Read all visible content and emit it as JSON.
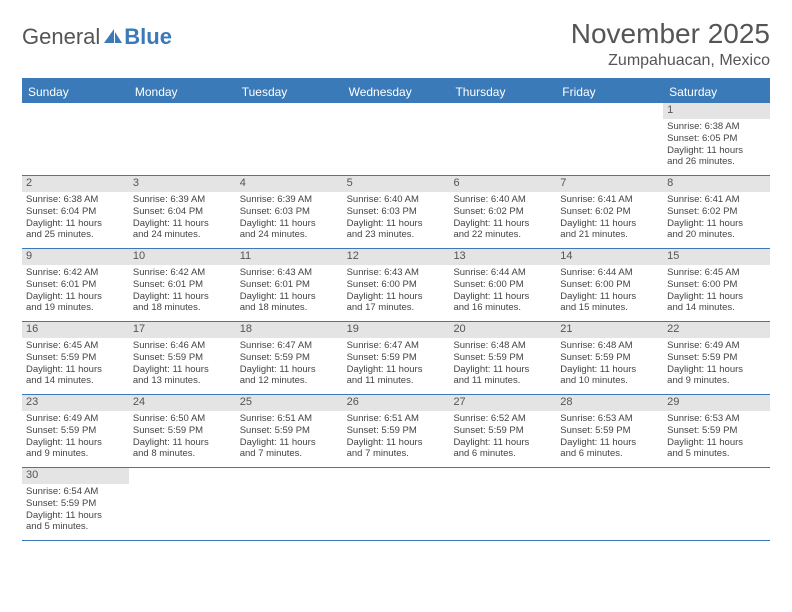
{
  "logo": {
    "text1": "General",
    "text2": "Blue"
  },
  "title": "November 2025",
  "location": "Zumpahuacan, Mexico",
  "header_color": "#3a7ab8",
  "daynum_bg": "#e4e4e4",
  "dayNames": [
    "Sunday",
    "Monday",
    "Tuesday",
    "Wednesday",
    "Thursday",
    "Friday",
    "Saturday"
  ],
  "weeks": [
    [
      {
        "empty": true
      },
      {
        "empty": true
      },
      {
        "empty": true
      },
      {
        "empty": true
      },
      {
        "empty": true
      },
      {
        "empty": true
      },
      {
        "n": "1",
        "sunrise": "Sunrise: 6:38 AM",
        "sunset": "Sunset: 6:05 PM",
        "day1": "Daylight: 11 hours",
        "day2": "and 26 minutes."
      }
    ],
    [
      {
        "n": "2",
        "sunrise": "Sunrise: 6:38 AM",
        "sunset": "Sunset: 6:04 PM",
        "day1": "Daylight: 11 hours",
        "day2": "and 25 minutes."
      },
      {
        "n": "3",
        "sunrise": "Sunrise: 6:39 AM",
        "sunset": "Sunset: 6:04 PM",
        "day1": "Daylight: 11 hours",
        "day2": "and 24 minutes."
      },
      {
        "n": "4",
        "sunrise": "Sunrise: 6:39 AM",
        "sunset": "Sunset: 6:03 PM",
        "day1": "Daylight: 11 hours",
        "day2": "and 24 minutes."
      },
      {
        "n": "5",
        "sunrise": "Sunrise: 6:40 AM",
        "sunset": "Sunset: 6:03 PM",
        "day1": "Daylight: 11 hours",
        "day2": "and 23 minutes."
      },
      {
        "n": "6",
        "sunrise": "Sunrise: 6:40 AM",
        "sunset": "Sunset: 6:02 PM",
        "day1": "Daylight: 11 hours",
        "day2": "and 22 minutes."
      },
      {
        "n": "7",
        "sunrise": "Sunrise: 6:41 AM",
        "sunset": "Sunset: 6:02 PM",
        "day1": "Daylight: 11 hours",
        "day2": "and 21 minutes."
      },
      {
        "n": "8",
        "sunrise": "Sunrise: 6:41 AM",
        "sunset": "Sunset: 6:02 PM",
        "day1": "Daylight: 11 hours",
        "day2": "and 20 minutes."
      }
    ],
    [
      {
        "n": "9",
        "sunrise": "Sunrise: 6:42 AM",
        "sunset": "Sunset: 6:01 PM",
        "day1": "Daylight: 11 hours",
        "day2": "and 19 minutes."
      },
      {
        "n": "10",
        "sunrise": "Sunrise: 6:42 AM",
        "sunset": "Sunset: 6:01 PM",
        "day1": "Daylight: 11 hours",
        "day2": "and 18 minutes."
      },
      {
        "n": "11",
        "sunrise": "Sunrise: 6:43 AM",
        "sunset": "Sunset: 6:01 PM",
        "day1": "Daylight: 11 hours",
        "day2": "and 18 minutes."
      },
      {
        "n": "12",
        "sunrise": "Sunrise: 6:43 AM",
        "sunset": "Sunset: 6:00 PM",
        "day1": "Daylight: 11 hours",
        "day2": "and 17 minutes."
      },
      {
        "n": "13",
        "sunrise": "Sunrise: 6:44 AM",
        "sunset": "Sunset: 6:00 PM",
        "day1": "Daylight: 11 hours",
        "day2": "and 16 minutes."
      },
      {
        "n": "14",
        "sunrise": "Sunrise: 6:44 AM",
        "sunset": "Sunset: 6:00 PM",
        "day1": "Daylight: 11 hours",
        "day2": "and 15 minutes."
      },
      {
        "n": "15",
        "sunrise": "Sunrise: 6:45 AM",
        "sunset": "Sunset: 6:00 PM",
        "day1": "Daylight: 11 hours",
        "day2": "and 14 minutes."
      }
    ],
    [
      {
        "n": "16",
        "sunrise": "Sunrise: 6:45 AM",
        "sunset": "Sunset: 5:59 PM",
        "day1": "Daylight: 11 hours",
        "day2": "and 14 minutes."
      },
      {
        "n": "17",
        "sunrise": "Sunrise: 6:46 AM",
        "sunset": "Sunset: 5:59 PM",
        "day1": "Daylight: 11 hours",
        "day2": "and 13 minutes."
      },
      {
        "n": "18",
        "sunrise": "Sunrise: 6:47 AM",
        "sunset": "Sunset: 5:59 PM",
        "day1": "Daylight: 11 hours",
        "day2": "and 12 minutes."
      },
      {
        "n": "19",
        "sunrise": "Sunrise: 6:47 AM",
        "sunset": "Sunset: 5:59 PM",
        "day1": "Daylight: 11 hours",
        "day2": "and 11 minutes."
      },
      {
        "n": "20",
        "sunrise": "Sunrise: 6:48 AM",
        "sunset": "Sunset: 5:59 PM",
        "day1": "Daylight: 11 hours",
        "day2": "and 11 minutes."
      },
      {
        "n": "21",
        "sunrise": "Sunrise: 6:48 AM",
        "sunset": "Sunset: 5:59 PM",
        "day1": "Daylight: 11 hours",
        "day2": "and 10 minutes."
      },
      {
        "n": "22",
        "sunrise": "Sunrise: 6:49 AM",
        "sunset": "Sunset: 5:59 PM",
        "day1": "Daylight: 11 hours",
        "day2": "and 9 minutes."
      }
    ],
    [
      {
        "n": "23",
        "sunrise": "Sunrise: 6:49 AM",
        "sunset": "Sunset: 5:59 PM",
        "day1": "Daylight: 11 hours",
        "day2": "and 9 minutes."
      },
      {
        "n": "24",
        "sunrise": "Sunrise: 6:50 AM",
        "sunset": "Sunset: 5:59 PM",
        "day1": "Daylight: 11 hours",
        "day2": "and 8 minutes."
      },
      {
        "n": "25",
        "sunrise": "Sunrise: 6:51 AM",
        "sunset": "Sunset: 5:59 PM",
        "day1": "Daylight: 11 hours",
        "day2": "and 7 minutes."
      },
      {
        "n": "26",
        "sunrise": "Sunrise: 6:51 AM",
        "sunset": "Sunset: 5:59 PM",
        "day1": "Daylight: 11 hours",
        "day2": "and 7 minutes."
      },
      {
        "n": "27",
        "sunrise": "Sunrise: 6:52 AM",
        "sunset": "Sunset: 5:59 PM",
        "day1": "Daylight: 11 hours",
        "day2": "and 6 minutes."
      },
      {
        "n": "28",
        "sunrise": "Sunrise: 6:53 AM",
        "sunset": "Sunset: 5:59 PM",
        "day1": "Daylight: 11 hours",
        "day2": "and 6 minutes."
      },
      {
        "n": "29",
        "sunrise": "Sunrise: 6:53 AM",
        "sunset": "Sunset: 5:59 PM",
        "day1": "Daylight: 11 hours",
        "day2": "and 5 minutes."
      }
    ],
    [
      {
        "n": "30",
        "sunrise": "Sunrise: 6:54 AM",
        "sunset": "Sunset: 5:59 PM",
        "day1": "Daylight: 11 hours",
        "day2": "and 5 minutes."
      },
      {
        "empty": true
      },
      {
        "empty": true
      },
      {
        "empty": true
      },
      {
        "empty": true
      },
      {
        "empty": true
      },
      {
        "empty": true
      }
    ]
  ]
}
